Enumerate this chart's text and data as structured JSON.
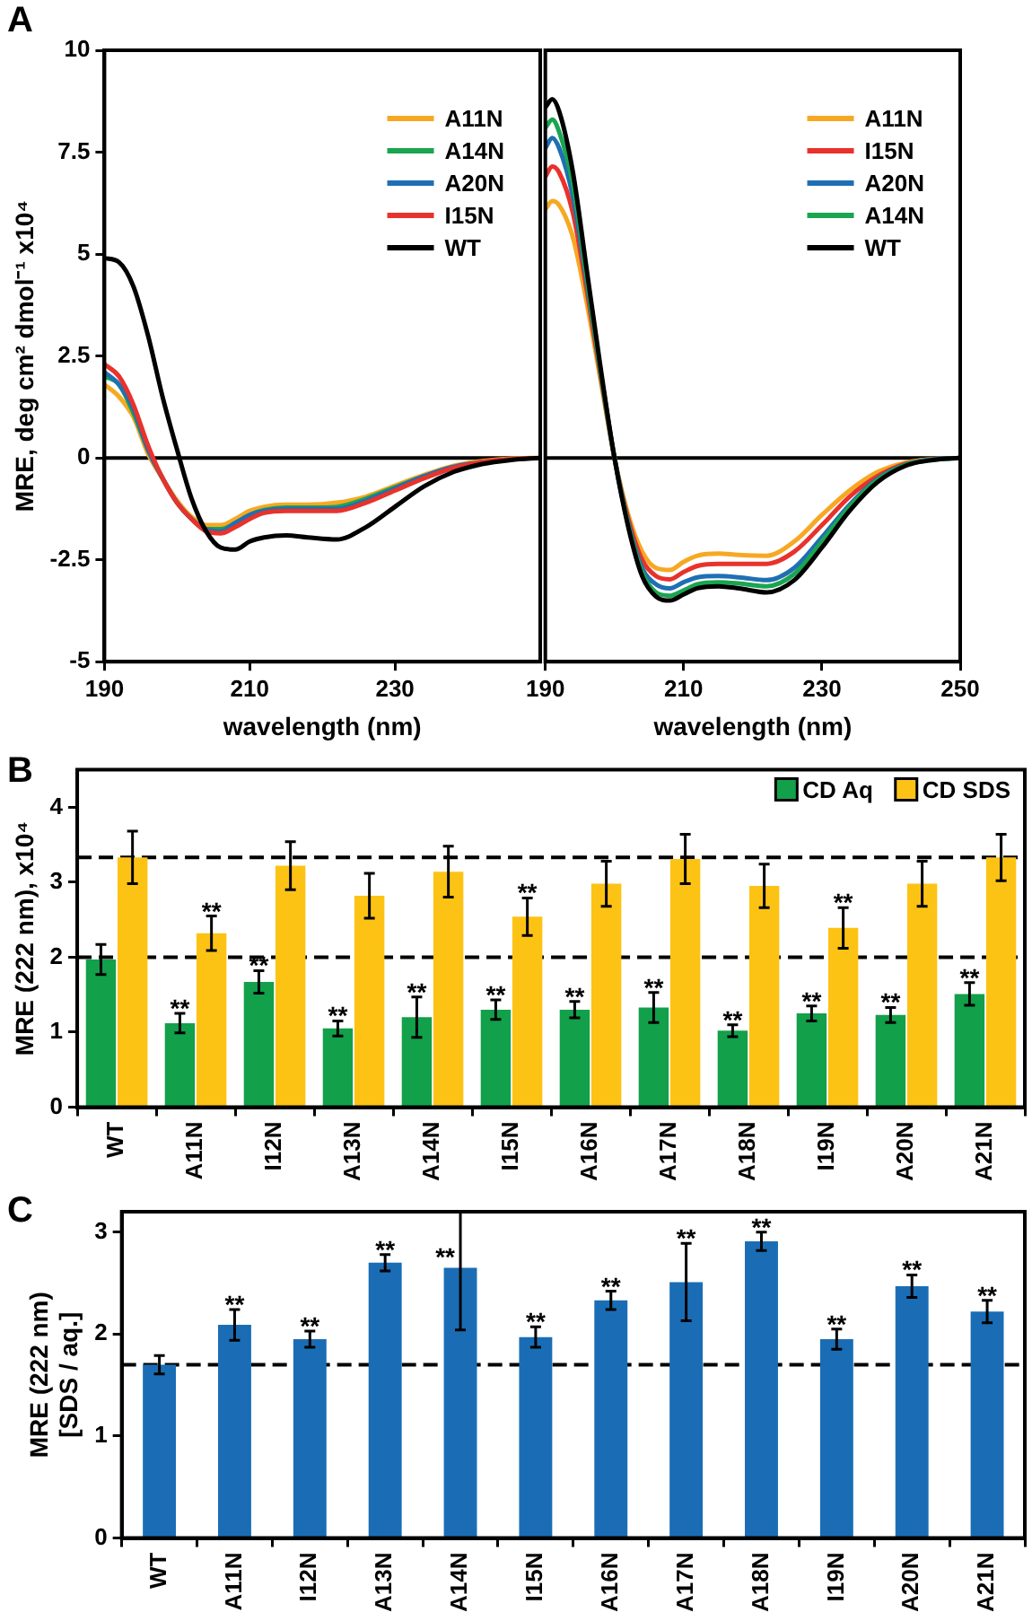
{
  "chart_data": [
    {
      "type": "line",
      "xlabel": "wavelength (nm)",
      "ylabel": "MRE, deg cm² dmol⁻¹ x10⁴",
      "annotations": [
        "A"
      ],
      "xlim": [
        190,
        250
      ],
      "xticks": [
        190,
        210,
        230
      ],
      "ylim": [
        -5,
        10
      ],
      "yticks": [
        -5,
        -2.5,
        0,
        2.5,
        5,
        7.5,
        10
      ],
      "legend": "top right",
      "ref_lines": [
        {
          "axis": "y",
          "value": 0,
          "color": "#000000",
          "line_style": "solid"
        }
      ],
      "x": [
        190,
        192,
        194,
        196,
        198,
        200,
        202,
        204,
        206,
        208,
        210,
        212,
        215,
        218,
        222,
        226,
        230,
        234,
        238,
        242,
        246,
        250
      ],
      "series": [
        {
          "name": "A11N",
          "color": "#f7a823",
          "values": [
            1.8,
            1.5,
            1.0,
            0.1,
            -0.5,
            -1.05,
            -1.45,
            -1.65,
            -1.65,
            -1.5,
            -1.3,
            -1.2,
            -1.15,
            -1.15,
            -1.1,
            -0.95,
            -0.68,
            -0.42,
            -0.2,
            -0.08,
            -0.02,
            0
          ]
        },
        {
          "name": "A14N",
          "color": "#1aa550",
          "values": [
            2.0,
            1.8,
            1.1,
            0.2,
            -0.5,
            -1.1,
            -1.5,
            -1.75,
            -1.75,
            -1.6,
            -1.4,
            -1.28,
            -1.22,
            -1.22,
            -1.2,
            -1.0,
            -0.72,
            -0.45,
            -0.22,
            null,
            null,
            null
          ]
        },
        {
          "name": "A20N",
          "color": "#1f6fb4",
          "values": [
            2.1,
            1.8,
            1.2,
            0.2,
            -0.5,
            -1.1,
            -1.5,
            -1.75,
            -1.8,
            -1.6,
            -1.4,
            -1.3,
            -1.25,
            -1.25,
            -1.25,
            -1.05,
            -0.75,
            -0.45,
            -0.22,
            -0.1,
            null,
            null
          ]
        },
        {
          "name": "I15N",
          "color": "#e8322c",
          "values": [
            2.3,
            2.0,
            1.3,
            0.3,
            -0.5,
            -1.1,
            -1.5,
            -1.8,
            -1.85,
            -1.7,
            -1.5,
            -1.35,
            -1.3,
            -1.3,
            -1.3,
            -1.1,
            -0.8,
            -0.5,
            -0.25,
            -0.1,
            -0.03,
            0
          ]
        },
        {
          "name": "WT",
          "color": "#000000",
          "values": [
            4.9,
            4.8,
            4.2,
            3.0,
            1.5,
            0.2,
            -1.0,
            -1.8,
            -2.2,
            -2.25,
            -2.05,
            -1.95,
            -1.9,
            -1.95,
            -2.0,
            -1.7,
            -1.2,
            -0.7,
            -0.35,
            -0.15,
            -0.05,
            0
          ]
        }
      ]
    },
    {
      "type": "line",
      "xlabel": "wavelength (nm)",
      "xlim": [
        190,
        250
      ],
      "xticks": [
        190,
        210,
        230,
        250
      ],
      "ylim": [
        -5,
        10
      ],
      "yticks": [
        -5,
        -2.5,
        0,
        2.5,
        5,
        7.5,
        10
      ],
      "tick_labels": "x",
      "legend": "top right",
      "ref_lines": [
        {
          "axis": "y",
          "value": 0,
          "color": "#000000",
          "line_style": "solid"
        }
      ],
      "x": [
        190,
        191,
        192,
        194,
        196,
        198,
        200,
        202,
        204,
        206,
        208,
        210,
        212,
        215,
        218,
        222,
        226,
        230,
        234,
        238,
        242,
        246,
        250
      ],
      "series": [
        {
          "name": "A11N",
          "color": "#f7a823",
          "values": [
            6.1,
            6.3,
            6.2,
            5.4,
            3.8,
            1.9,
            0.0,
            -1.4,
            -2.3,
            -2.7,
            -2.75,
            -2.55,
            -2.4,
            -2.35,
            -2.38,
            -2.4,
            -2.05,
            -1.4,
            -0.8,
            -0.35,
            -0.12,
            -0.03,
            0
          ]
        },
        {
          "name": "I15N",
          "color": "#e8322c",
          "values": [
            6.9,
            7.15,
            7.0,
            6.0,
            4.1,
            2.0,
            0.0,
            -1.5,
            -2.5,
            -2.9,
            -2.98,
            -2.8,
            -2.65,
            -2.6,
            -2.6,
            -2.6,
            -2.3,
            -1.65,
            -0.95,
            -0.45,
            -0.15,
            -0.04,
            0
          ]
        },
        {
          "name": "A20N",
          "color": "#1f6fb4",
          "values": [
            7.6,
            7.85,
            7.6,
            6.4,
            4.3,
            2.1,
            0.0,
            -1.6,
            -2.7,
            -3.1,
            -3.2,
            -3.05,
            -2.93,
            -2.9,
            -2.93,
            -3.0,
            -2.7,
            -1.95,
            -1.15,
            -0.52,
            -0.17,
            -0.04,
            0
          ]
        },
        {
          "name": "A14N",
          "color": "#1aa550",
          "values": [
            8.1,
            8.3,
            8.0,
            6.7,
            4.4,
            2.1,
            0.0,
            -1.65,
            -2.8,
            -3.3,
            -3.38,
            -3.25,
            -3.1,
            -3.05,
            -3.08,
            -3.15,
            -2.85,
            -2.05,
            -1.2,
            -0.55,
            -0.18,
            -0.05,
            0
          ]
        },
        {
          "name": "WT",
          "color": "#000000",
          "values": [
            8.6,
            8.8,
            8.5,
            7.0,
            4.6,
            2.2,
            0.0,
            -1.7,
            -2.9,
            -3.4,
            -3.5,
            -3.35,
            -3.2,
            -3.15,
            -3.2,
            -3.3,
            -3.0,
            -2.2,
            -1.3,
            -0.6,
            -0.2,
            -0.05,
            0
          ]
        }
      ]
    },
    {
      "type": "bar",
      "ylabel": "MRE (222 nm), x10⁴",
      "ylim": [
        0,
        4.5
      ],
      "yticks": [
        0,
        1,
        2,
        3,
        4
      ],
      "legend": "top right",
      "categories": [
        "WT",
        "A11N",
        "I12N",
        "A13N",
        "A14N",
        "I15N",
        "A16N",
        "A17N",
        "A18N",
        "I19N",
        "A20N",
        "A21N"
      ],
      "ref_lines": [
        {
          "axis": "y",
          "value": 3.33,
          "color": "#000000",
          "line_style": "dashed"
        },
        {
          "axis": "y",
          "value": 2.0,
          "color": "#000000",
          "line_style": "dashed"
        }
      ],
      "series": [
        {
          "name": "CD Aq",
          "color": "#12a04a",
          "values": [
            1.97,
            1.12,
            1.67,
            1.05,
            1.2,
            1.3,
            1.3,
            1.33,
            1.02,
            1.25,
            1.23,
            1.51
          ],
          "errors": [
            0.2,
            0.13,
            0.15,
            0.1,
            0.27,
            0.13,
            0.11,
            0.2,
            0.08,
            0.1,
            0.1,
            0.15
          ]
        },
        {
          "name": "CD SDS",
          "color": "#fdc314",
          "values": [
            3.33,
            2.32,
            3.22,
            2.82,
            3.14,
            2.54,
            2.98,
            3.31,
            2.95,
            2.39,
            2.98,
            3.33
          ],
          "errors": [
            0.35,
            0.23,
            0.32,
            0.3,
            0.34,
            0.25,
            0.3,
            0.33,
            0.29,
            0.27,
            0.3,
            0.31
          ]
        }
      ],
      "annotations": [
        "B",
        {
          "text": "**",
          "x": "A11N",
          "y": 1.25
        },
        {
          "text": "**",
          "x": "I12N",
          "y": 1.82
        },
        {
          "text": "**",
          "x": "A13N",
          "y": 1.15
        },
        {
          "text": "**",
          "x": "A14N",
          "y": 1.47
        },
        {
          "text": "**",
          "x": "I15N",
          "y": 1.43
        },
        {
          "text": "**",
          "x": "A16N",
          "y": 1.41
        },
        {
          "text": "**",
          "x": "A17N",
          "y": 1.53
        },
        {
          "text": "**",
          "x": "A18N",
          "y": 1.1
        },
        {
          "text": "**",
          "x": "I19N",
          "y": 1.35
        },
        {
          "text": "**",
          "x": "A20N",
          "y": 1.33
        },
        {
          "text": "**",
          "x": "A21N",
          "y": 1.66
        },
        {
          "text": "**",
          "x": "A11N",
          "y": 2.32
        },
        {
          "text": "**",
          "x": "I15N",
          "y": 2.54
        },
        {
          "text": "**",
          "x": "I19N",
          "y": 2.39
        }
      ]
    },
    {
      "type": "bar",
      "ylabel": "MRE (222 nm)\n[SDS / aq.]",
      "ylim": [
        0,
        3.2
      ],
      "yticks": [
        0,
        1,
        2,
        3
      ],
      "categories": [
        "WT",
        "A11N",
        "I12N",
        "A13N",
        "A14N",
        "I15N",
        "A16N",
        "A17N",
        "A18N",
        "I19N",
        "A20N",
        "A21N"
      ],
      "color": "#1a6db5",
      "values": [
        1.7,
        2.09,
        1.95,
        2.7,
        2.65,
        1.97,
        2.33,
        2.51,
        2.91,
        1.95,
        2.47,
        2.22
      ],
      "errors": [
        0.09,
        0.15,
        0.08,
        0.08,
        [
          2.04,
          3.2
        ],
        0.1,
        0.09,
        0.38,
        0.09,
        0.1,
        0.11,
        0.11
      ],
      "ref_lines": [
        {
          "axis": "y",
          "value": 1.7,
          "color": "#000000",
          "line_style": "dashed"
        }
      ],
      "annotations": [
        "C",
        {
          "text": "**",
          "x": "A11N",
          "y": 2.24
        },
        {
          "text": "**",
          "x": "I12N",
          "y": 2.03
        },
        {
          "text": "**",
          "x": "A13N",
          "y": 2.78
        },
        {
          "text": "**",
          "x": "A14N",
          "y": 2.65
        },
        {
          "text": "**",
          "x": "I15N",
          "y": 2.07
        },
        {
          "text": "**",
          "x": "A16N",
          "y": 2.42
        },
        {
          "text": "**",
          "x": "A17N",
          "y": 2.89
        },
        {
          "text": "**",
          "x": "A18N",
          "y": 3.0
        },
        {
          "text": "**",
          "x": "I19N",
          "y": 2.05
        },
        {
          "text": "**",
          "x": "A20N",
          "y": 2.58
        },
        {
          "text": "**",
          "x": "A21N",
          "y": 2.33
        }
      ]
    }
  ]
}
